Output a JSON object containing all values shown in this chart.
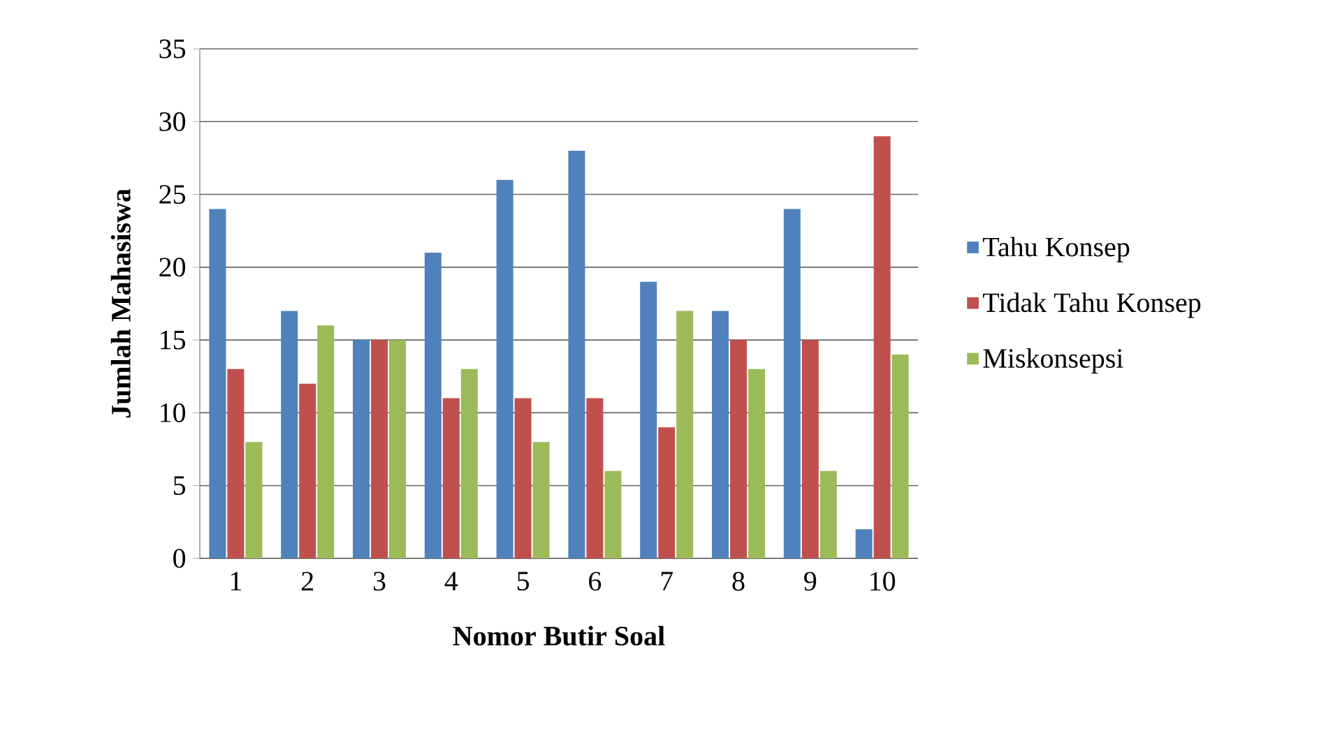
{
  "chart_data": {
    "type": "bar",
    "xlabel": "Nomor Butir Soal",
    "ylabel": "Jumlah Mahasiswa",
    "categories": [
      "1",
      "2",
      "3",
      "4",
      "5",
      "6",
      "7",
      "8",
      "9",
      "10"
    ],
    "series": [
      {
        "name": "Tahu Konsep",
        "color": "#4f81bd",
        "values": [
          24,
          17,
          15,
          21,
          26,
          28,
          19,
          17,
          24,
          2
        ]
      },
      {
        "name": "Tidak Tahu Konsep",
        "color": "#c0504d",
        "values": [
          13,
          12,
          15,
          11,
          11,
          11,
          9,
          15,
          15,
          29
        ]
      },
      {
        "name": "Miskonsepsi",
        "color": "#9bbb59",
        "values": [
          8,
          16,
          15,
          13,
          8,
          6,
          17,
          13,
          6,
          14
        ]
      }
    ],
    "ylim": [
      0,
      35
    ],
    "yticks": [
      0,
      5,
      10,
      15,
      20,
      25,
      30,
      35
    ],
    "grid": "y",
    "legend": "right"
  }
}
